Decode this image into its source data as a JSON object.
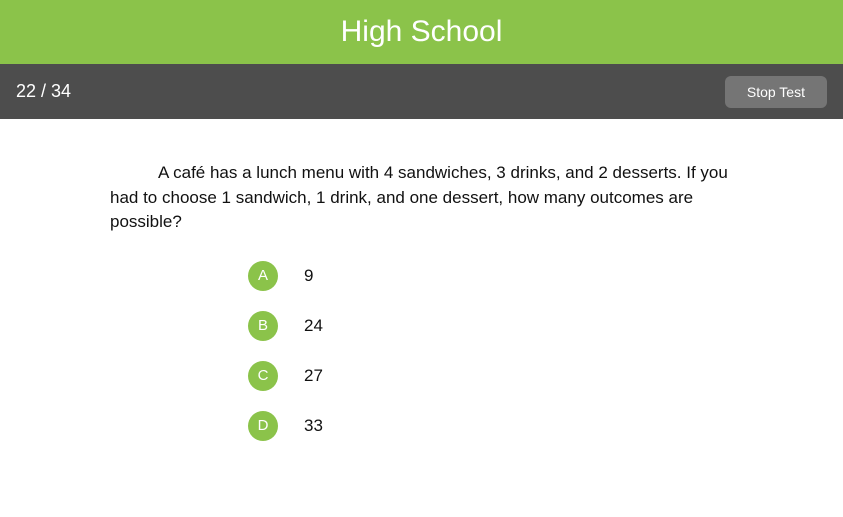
{
  "colors": {
    "header_bg": "#8bc34a",
    "subbar_bg": "#4d4d4d",
    "button_bg": "#757575",
    "bubble_bg": "#8bc34a",
    "text": "#111111"
  },
  "header": {
    "title": "High School"
  },
  "subbar": {
    "progress": "22 / 34",
    "stop_label": "Stop Test"
  },
  "question": {
    "text": "A café has a lunch menu with 4 sandwiches, 3 drinks, and 2 desserts. If you had to choose 1 sandwich, 1 drink, and one dessert, how many outcomes are possible?"
  },
  "options": [
    {
      "letter": "A",
      "text": "9"
    },
    {
      "letter": "B",
      "text": "24"
    },
    {
      "letter": "C",
      "text": "27"
    },
    {
      "letter": "D",
      "text": "33"
    }
  ]
}
